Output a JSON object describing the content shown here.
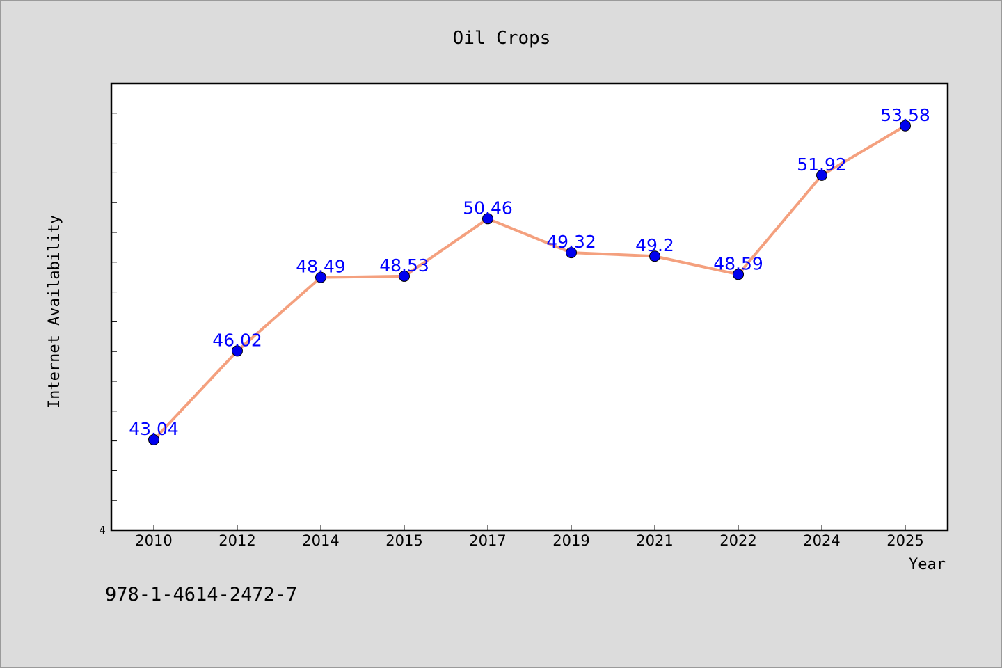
{
  "footer": {
    "isbn": "978-1-4614-2472-7"
  },
  "chart_data": {
    "type": "line",
    "title": "Oil Crops",
    "xlabel": "Year",
    "ylabel": "Internet Availability",
    "categories": [
      "2010",
      "2012",
      "2014",
      "2015",
      "2017",
      "2019",
      "2021",
      "2022",
      "2024",
      "2025"
    ],
    "series": [
      {
        "values": [
          43.04,
          46.02,
          48.49,
          48.53,
          50.46,
          49.32,
          49.2,
          48.59,
          51.92,
          53.58
        ],
        "labels": [
          "43.04",
          "46.02",
          "48.49",
          "48.53",
          "50.46",
          "49.32",
          "49.2",
          "48.59",
          "51.92",
          "53.58"
        ],
        "line_color": "#f4a07e",
        "marker_color": "#0000ee"
      }
    ],
    "ylim": [
      40.0,
      55.0
    ],
    "yticks_labeled": [
      "4"
    ],
    "grid": false,
    "legend": "none"
  }
}
